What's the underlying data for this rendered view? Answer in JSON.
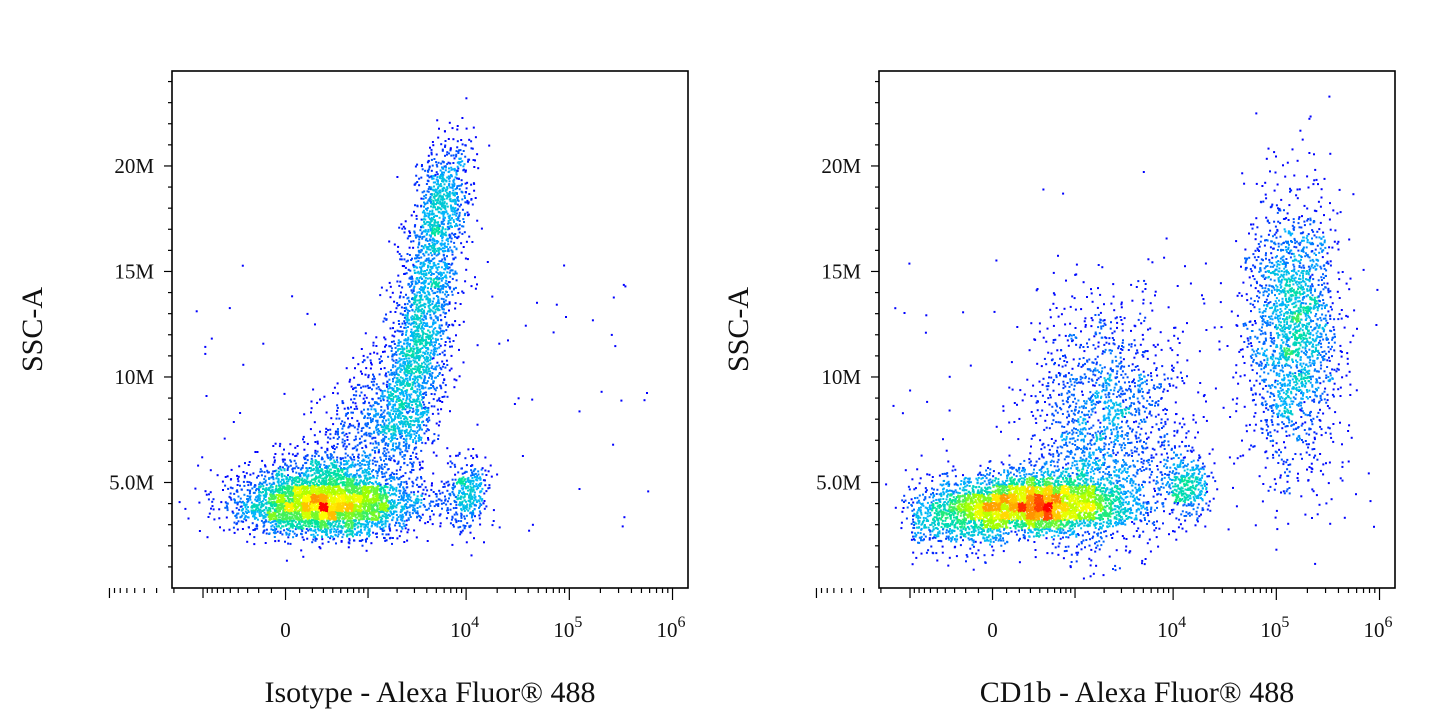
{
  "chart_data": [
    {
      "type": "scatter",
      "subtype": "flow-cytometry-density-dot-plot",
      "xlabel": "Isotype - Alexa Fluor® 488",
      "ylabel": "SSC-A",
      "x_scale": "biexponential",
      "y_scale": "linear",
      "x_tick_labels": [
        "0",
        "10^4",
        "10^5",
        "10^6"
      ],
      "x_ticks": [
        0,
        10000,
        100000,
        1000000
      ],
      "y_tick_labels": [
        "5.0M",
        "10M",
        "15M",
        "20M"
      ],
      "y_ticks": [
        5000000,
        10000000,
        15000000,
        20000000
      ],
      "ylim": [
        0,
        24500000
      ],
      "density_colormap": [
        "#0000ff",
        "#00b4ff",
        "#00e69b",
        "#a0ff00",
        "#ffff00",
        "#ff9600",
        "#ff0000"
      ],
      "populations": [
        {
          "x_center": 800,
          "y_center": 3600000,
          "x_spread": "wide",
          "y_spread": 1000000,
          "weight": 0.55
        },
        {
          "x_center": 4500,
          "y_center": 11000000,
          "x_spread": "narrow-diagonal",
          "y_spread": 3000000,
          "weight": 0.3
        },
        {
          "x_center": 10000,
          "y_center": 5000000,
          "x_spread": "narrow",
          "y_spread": 700000,
          "weight": 0.04
        },
        {
          "x_center": 30000,
          "y_center": 12000000,
          "x_spread": "sparse",
          "y_spread": 4000000,
          "weight": 0.02
        }
      ]
    },
    {
      "type": "scatter",
      "subtype": "flow-cytometry-density-dot-plot",
      "xlabel": "CD1b - Alexa Fluor® 488",
      "ylabel": "SSC-A",
      "x_scale": "biexponential",
      "y_scale": "linear",
      "x_tick_labels": [
        "0",
        "10^4",
        "10^5",
        "10^6"
      ],
      "x_ticks": [
        0,
        10000,
        100000,
        1000000
      ],
      "y_tick_labels": [
        "5.0M",
        "10M",
        "15M",
        "20M"
      ],
      "y_ticks": [
        5000000,
        10000000,
        15000000,
        20000000
      ],
      "ylim": [
        0,
        24500000
      ],
      "density_colormap": [
        "#0000ff",
        "#00b4ff",
        "#00e69b",
        "#a0ff00",
        "#ffff00",
        "#ff9600",
        "#ff0000"
      ],
      "populations": [
        {
          "x_center": 600,
          "y_center": 3600000,
          "x_spread": "wide",
          "y_spread": 900000,
          "weight": 0.48
        },
        {
          "x_center": 3000,
          "y_center": 8500000,
          "x_spread": "wide",
          "y_spread": 3000000,
          "weight": 0.2
        },
        {
          "x_center": 10000,
          "y_center": 4800000,
          "x_spread": "narrow",
          "y_spread": 700000,
          "weight": 0.05
        },
        {
          "x_center": 130000,
          "y_center": 12500000,
          "x_spread": "narrow",
          "y_spread": 3200000,
          "weight": 0.25
        }
      ]
    }
  ]
}
